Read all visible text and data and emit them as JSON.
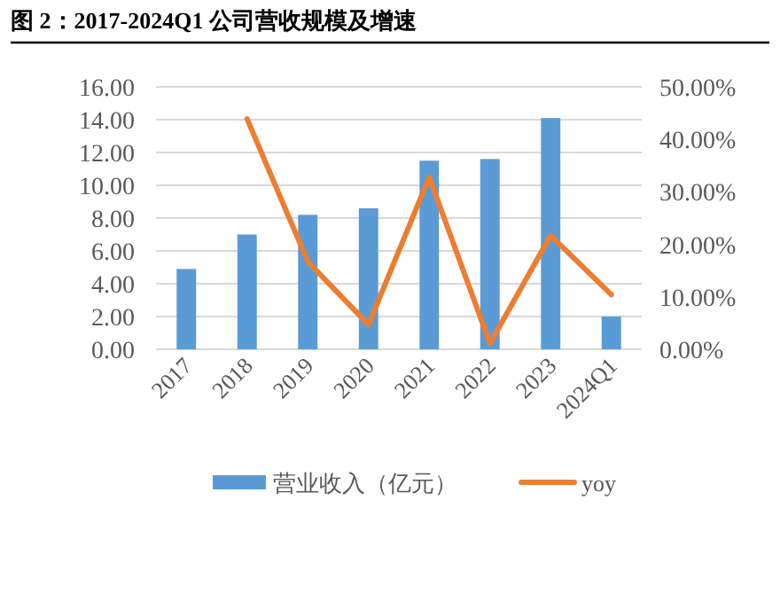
{
  "chart_data": {
    "type": "bar",
    "title": "图 2：2017-2024Q1 公司营收规模及增速",
    "categories": [
      "2017",
      "2018",
      "2019",
      "2020",
      "2021",
      "2022",
      "2023",
      "2024Q1"
    ],
    "series": [
      {
        "name": "营业收入（亿元）",
        "color": "#5b9bd5",
        "values": [
          4.9,
          7.0,
          8.2,
          8.6,
          11.5,
          11.6,
          14.1,
          2.0
        ]
      },
      {
        "name": "yoy",
        "type": "line",
        "axis": "y2",
        "color": "#ed7d31",
        "values": [
          null,
          43.9,
          16.7,
          4.7,
          32.8,
          1.1,
          21.7,
          10.4
        ]
      }
    ],
    "ylim": [
      0,
      16
    ],
    "yticks": [
      {
        "value": 0,
        "label": "0.00"
      },
      {
        "value": 2,
        "label": "2.00"
      },
      {
        "value": 4,
        "label": "4.00"
      },
      {
        "value": 6,
        "label": "6.00"
      },
      {
        "value": 8,
        "label": "8.00"
      },
      {
        "value": 10,
        "label": "10.00"
      },
      {
        "value": 12,
        "label": "12.00"
      },
      {
        "value": 14,
        "label": "14.00"
      },
      {
        "value": 16,
        "label": "16.00"
      }
    ],
    "y2lim": [
      0,
      50
    ],
    "y2ticks": [
      {
        "value": 0,
        "label": "0.00%"
      },
      {
        "value": 10,
        "label": "10.00%"
      },
      {
        "value": 20,
        "label": "20.00%"
      },
      {
        "value": 30,
        "label": "30.00%"
      },
      {
        "value": 40,
        "label": "40.00%"
      },
      {
        "value": 50,
        "label": "50.00%"
      }
    ],
    "grid": "y",
    "legend": "bottom",
    "marker": "none",
    "line_style": "solid"
  }
}
